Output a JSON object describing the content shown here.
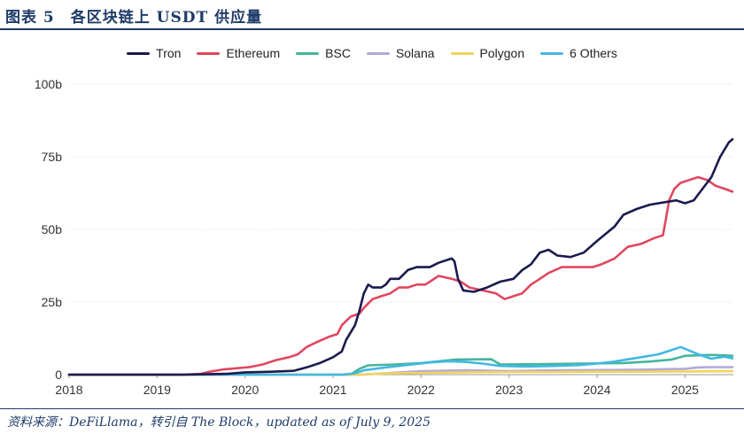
{
  "header": {
    "title": "图表 5　各区块链上 USDT 供应量"
  },
  "footer": {
    "source": "资料来源：DeFiLlama，转引自 The Block，updated as of July 9, 2025"
  },
  "chart_data": {
    "type": "line",
    "title": "",
    "xlabel": "",
    "ylabel": "",
    "xlim": [
      2018.0,
      2025.55
    ],
    "ylim": [
      0,
      100
    ],
    "x_ticks": [
      2018,
      2019,
      2020,
      2021,
      2022,
      2023,
      2024,
      2025
    ],
    "x_tick_labels": [
      "2018",
      "2019",
      "2020",
      "2021",
      "2022",
      "2023",
      "2024",
      "2025"
    ],
    "y_ticks": [
      0,
      25,
      50,
      75,
      100
    ],
    "y_tick_labels": [
      "0",
      "25b",
      "50b",
      "75b",
      "100b"
    ],
    "grid": "horizontal",
    "legend_position": "top-center",
    "series": [
      {
        "name": "Tron",
        "color": "#1b1a4d",
        "points": [
          [
            2018.0,
            0
          ],
          [
            2019.3,
            0
          ],
          [
            2019.8,
            0.3
          ],
          [
            2020.0,
            0.8
          ],
          [
            2020.3,
            1.0
          ],
          [
            2020.55,
            1.3
          ],
          [
            2020.7,
            2.5
          ],
          [
            2020.85,
            4
          ],
          [
            2021.0,
            6
          ],
          [
            2021.1,
            8
          ],
          [
            2021.15,
            12
          ],
          [
            2021.25,
            17
          ],
          [
            2021.3,
            22
          ],
          [
            2021.35,
            28
          ],
          [
            2021.4,
            31
          ],
          [
            2021.45,
            30
          ],
          [
            2021.55,
            30
          ],
          [
            2021.6,
            31
          ],
          [
            2021.65,
            33
          ],
          [
            2021.75,
            33
          ],
          [
            2021.85,
            36
          ],
          [
            2021.95,
            37
          ],
          [
            2022.1,
            37
          ],
          [
            2022.2,
            38.5
          ],
          [
            2022.35,
            40
          ],
          [
            2022.38,
            39
          ],
          [
            2022.42,
            33
          ],
          [
            2022.48,
            29
          ],
          [
            2022.6,
            28.5
          ],
          [
            2022.75,
            30
          ],
          [
            2022.9,
            32
          ],
          [
            2023.05,
            33
          ],
          [
            2023.15,
            36
          ],
          [
            2023.25,
            38
          ],
          [
            2023.35,
            42
          ],
          [
            2023.45,
            43
          ],
          [
            2023.55,
            41
          ],
          [
            2023.7,
            40.5
          ],
          [
            2023.85,
            42
          ],
          [
            2024.0,
            46
          ],
          [
            2024.2,
            51
          ],
          [
            2024.3,
            55
          ],
          [
            2024.45,
            57
          ],
          [
            2024.6,
            58.5
          ],
          [
            2024.8,
            59.5
          ],
          [
            2024.9,
            60
          ],
          [
            2025.0,
            59
          ],
          [
            2025.1,
            60
          ],
          [
            2025.2,
            64
          ],
          [
            2025.3,
            68
          ],
          [
            2025.4,
            75
          ],
          [
            2025.5,
            80
          ],
          [
            2025.54,
            81
          ]
        ]
      },
      {
        "name": "Ethereum",
        "color": "#e0475f",
        "points": [
          [
            2018.0,
            0
          ],
          [
            2019.3,
            0
          ],
          [
            2019.5,
            0.3
          ],
          [
            2019.6,
            1
          ],
          [
            2019.75,
            1.8
          ],
          [
            2019.9,
            2.2
          ],
          [
            2020.05,
            2.6
          ],
          [
            2020.2,
            3.5
          ],
          [
            2020.35,
            5
          ],
          [
            2020.5,
            6
          ],
          [
            2020.6,
            7
          ],
          [
            2020.7,
            9.5
          ],
          [
            2020.8,
            11
          ],
          [
            2020.95,
            13
          ],
          [
            2021.05,
            14
          ],
          [
            2021.1,
            17
          ],
          [
            2021.2,
            20
          ],
          [
            2021.3,
            21
          ],
          [
            2021.35,
            23
          ],
          [
            2021.45,
            26
          ],
          [
            2021.55,
            27
          ],
          [
            2021.65,
            28
          ],
          [
            2021.75,
            30
          ],
          [
            2021.85,
            30
          ],
          [
            2021.95,
            31
          ],
          [
            2022.05,
            31
          ],
          [
            2022.2,
            34
          ],
          [
            2022.35,
            33
          ],
          [
            2022.45,
            32
          ],
          [
            2022.55,
            30
          ],
          [
            2022.7,
            29
          ],
          [
            2022.85,
            28
          ],
          [
            2022.95,
            26
          ],
          [
            2023.05,
            27
          ],
          [
            2023.15,
            28
          ],
          [
            2023.25,
            31
          ],
          [
            2023.35,
            33
          ],
          [
            2023.45,
            35
          ],
          [
            2023.6,
            37
          ],
          [
            2023.75,
            37
          ],
          [
            2023.95,
            37
          ],
          [
            2024.05,
            38
          ],
          [
            2024.2,
            40
          ],
          [
            2024.35,
            44
          ],
          [
            2024.5,
            45
          ],
          [
            2024.65,
            47
          ],
          [
            2024.75,
            48
          ],
          [
            2024.78,
            53
          ],
          [
            2024.82,
            60
          ],
          [
            2024.88,
            64
          ],
          [
            2024.95,
            66
          ],
          [
            2025.05,
            67
          ],
          [
            2025.15,
            68
          ],
          [
            2025.25,
            67
          ],
          [
            2025.35,
            65
          ],
          [
            2025.45,
            64
          ],
          [
            2025.54,
            63
          ]
        ]
      },
      {
        "name": "BSC",
        "color": "#44b59a",
        "points": [
          [
            2018.0,
            0
          ],
          [
            2021.2,
            0
          ],
          [
            2021.3,
            2
          ],
          [
            2021.4,
            3.2
          ],
          [
            2021.7,
            3.5
          ],
          [
            2022.0,
            4
          ],
          [
            2022.2,
            4.6
          ],
          [
            2022.4,
            5.2
          ],
          [
            2022.8,
            5.3
          ],
          [
            2022.9,
            3.5
          ],
          [
            2023.3,
            3.6
          ],
          [
            2023.8,
            3.8
          ],
          [
            2024.3,
            4
          ],
          [
            2024.6,
            4.5
          ],
          [
            2024.85,
            5.2
          ],
          [
            2025.0,
            6.5
          ],
          [
            2025.3,
            6.8
          ],
          [
            2025.54,
            6.5
          ]
        ]
      },
      {
        "name": "Solana",
        "color": "#b3a9db",
        "points": [
          [
            2018.0,
            0
          ],
          [
            2021.3,
            0
          ],
          [
            2021.6,
            0.5
          ],
          [
            2022.0,
            1.2
          ],
          [
            2022.5,
            1.5
          ],
          [
            2023.0,
            1.2
          ],
          [
            2023.5,
            1.5
          ],
          [
            2024.0,
            1.6
          ],
          [
            2024.5,
            1.7
          ],
          [
            2025.0,
            2
          ],
          [
            2025.15,
            2.5
          ],
          [
            2025.3,
            2.6
          ],
          [
            2025.54,
            2.6
          ]
        ]
      },
      {
        "name": "Polygon",
        "color": "#f2d35a",
        "points": [
          [
            2018.0,
            0
          ],
          [
            2021.3,
            0
          ],
          [
            2021.6,
            0.4
          ],
          [
            2022.0,
            0.6
          ],
          [
            2022.5,
            0.8
          ],
          [
            2023.0,
            0.9
          ],
          [
            2023.5,
            0.9
          ],
          [
            2024.0,
            1.0
          ],
          [
            2024.5,
            1.0
          ],
          [
            2025.0,
            1.1
          ],
          [
            2025.54,
            1.2
          ]
        ]
      },
      {
        "name": "6 Others",
        "color": "#42b8e3",
        "points": [
          [
            2018.0,
            0
          ],
          [
            2021.1,
            0
          ],
          [
            2021.25,
            0.5
          ],
          [
            2021.35,
            1.5
          ],
          [
            2021.6,
            2.5
          ],
          [
            2021.9,
            3.5
          ],
          [
            2022.1,
            4.2
          ],
          [
            2022.3,
            4.6
          ],
          [
            2022.5,
            4.4
          ],
          [
            2022.7,
            3.8
          ],
          [
            2022.9,
            3.0
          ],
          [
            2023.2,
            2.8
          ],
          [
            2023.5,
            3.0
          ],
          [
            2023.8,
            3.3
          ],
          [
            2024.0,
            3.8
          ],
          [
            2024.2,
            4.5
          ],
          [
            2024.5,
            6
          ],
          [
            2024.7,
            7
          ],
          [
            2024.85,
            8.5
          ],
          [
            2024.95,
            9.5
          ],
          [
            2025.05,
            8.3
          ],
          [
            2025.15,
            7
          ],
          [
            2025.3,
            5.5
          ],
          [
            2025.45,
            6.2
          ],
          [
            2025.54,
            5.6
          ]
        ]
      }
    ]
  }
}
